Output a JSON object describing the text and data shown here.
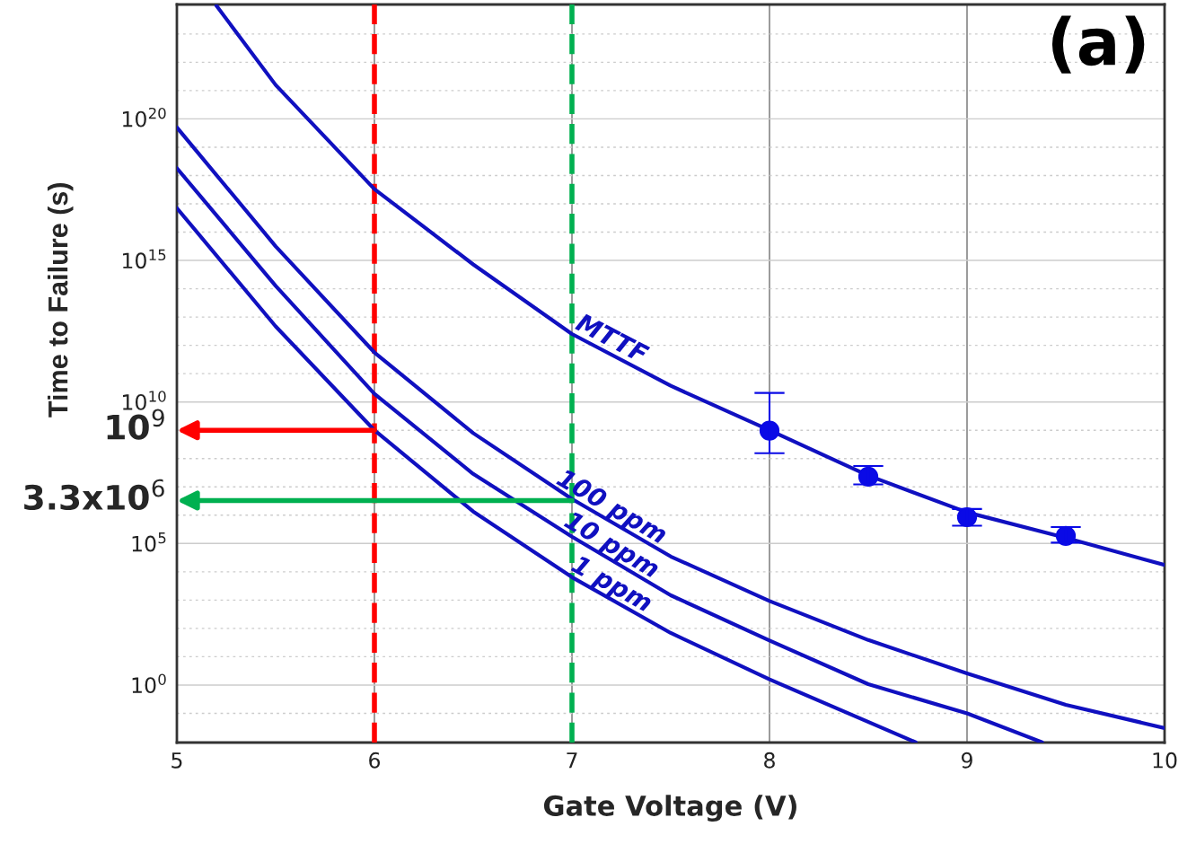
{
  "chart_data": {
    "type": "line",
    "xlabel": "Gate Voltage (V)",
    "ylabel": "Time to Failure (s)",
    "log": "y",
    "grid": true,
    "marker": "none",
    "line_style": "solid",
    "xlim": [
      5,
      10
    ],
    "xticks": [
      5,
      6,
      7,
      8,
      9,
      10
    ],
    "ylim": [
      0.0093,
      1.1e+24
    ],
    "yticks": [
      {
        "value": 0.1,
        "label": null
      },
      {
        "value": 1,
        "label": "10$^{0}$"
      },
      {
        "value": 10,
        "label": null
      },
      {
        "value": 100,
        "label": null
      },
      {
        "value": 1000,
        "label": null
      },
      {
        "value": 10000,
        "label": null
      },
      {
        "value": 100000,
        "label": "10$^{5}$"
      },
      {
        "value": 1000000.0,
        "label": null
      },
      {
        "value": 10000000.0,
        "label": null
      },
      {
        "value": 100000000.0,
        "label": null
      },
      {
        "value": 1000000000.0,
        "label": null
      },
      {
        "value": 10000000000.0,
        "label": "10$^{10}$"
      },
      {
        "value": 100000000000.0,
        "label": null
      },
      {
        "value": 1000000000000.0,
        "label": null
      },
      {
        "value": 10000000000000.0,
        "label": null
      },
      {
        "value": 100000000000000.0,
        "label": null
      },
      {
        "value": 1000000000000000.0,
        "label": "10$^{15}$"
      },
      {
        "value": 1e+16,
        "label": null
      },
      {
        "value": 1e+17,
        "label": null
      },
      {
        "value": 1e+18,
        "label": null
      },
      {
        "value": 1e+19,
        "label": null
      },
      {
        "value": 1e+20,
        "label": "10$^{20}$"
      },
      {
        "value": 1e+21,
        "label": null
      },
      {
        "value": 1e+22,
        "label": null
      },
      {
        "value": 1e+23,
        "label": null
      }
    ],
    "series": [
      {
        "name": "MTTF",
        "color": "#1010c0",
        "x": [
          5.2,
          5.5,
          6,
          6.5,
          7,
          7.5,
          8,
          8.5,
          9,
          9.5,
          10
        ],
        "values": [
          1e+24,
          1.58e+21,
          3.31e+17,
          724000000000000.0,
          2510000000000.0,
          37200000000.0,
          1000000000.0,
          25100000.0,
          1260000.0,
          158000.0,
          17400.0
        ]
      },
      {
        "name": "100 ppm",
        "color": "#1010c0",
        "x": [
          5,
          5.5,
          6,
          6.5,
          7,
          7.5,
          8,
          8.5,
          9,
          9.5,
          10
        ],
        "values": [
          5.01e+19,
          3160000000000000.0,
          562000000000.0,
          794000000.0,
          3720000.0,
          34700.0,
          933,
          38.9,
          2.57,
          0.2,
          0.0302
        ]
      },
      {
        "name": "10 ppm",
        "color": "#1010c0",
        "x": [
          5,
          5.5,
          6,
          6.5,
          7,
          7.5,
          8,
          8.5,
          9,
          9.38
        ],
        "values": [
          1.82e+18,
          126000000000000.0,
          19500000000.0,
          28800000.0,
          174000.0,
          1480,
          37.2,
          1.07,
          0.1,
          0.0095
        ]
      },
      {
        "name": "1 ppm",
        "color": "#1010c0",
        "x": [
          5,
          5.5,
          6,
          6.5,
          7,
          7.5,
          8,
          8.74
        ],
        "values": [
          7.08e+16,
          4680000000000.0,
          1000000000.0,
          1350000.0,
          6460,
          69.2,
          1.58,
          0.0095
        ]
      },
      {
        "type": "scatter",
        "marker": "circle",
        "color": "#0a0ae6",
        "x": [
          8,
          8.5,
          9,
          9.5
        ],
        "values": [
          977000000.0,
          22900000.0,
          851000.0,
          186000.0
        ],
        "errors": [
          [
            155000000.0,
            20900000000.0
          ],
          [
            12300000.0,
            55000000.0
          ],
          [
            427000.0,
            1660000.0
          ],
          [
            107000.0,
            380000.0
          ]
        ]
      }
    ],
    "ref_lines": [
      {
        "axis": "x",
        "value": 6,
        "color": "#ff0000",
        "line_style": "dashed"
      },
      {
        "axis": "x",
        "value": 7,
        "color": "#00b050",
        "line_style": "dashed"
      }
    ],
    "annotations": [
      {
        "text": "10$^{9}$",
        "x": 6,
        "y": 1000000000.0
      },
      {
        "text": "3.3x10$^{6}$",
        "x": 7,
        "y": 3300000.0
      },
      "(a)"
    ]
  }
}
